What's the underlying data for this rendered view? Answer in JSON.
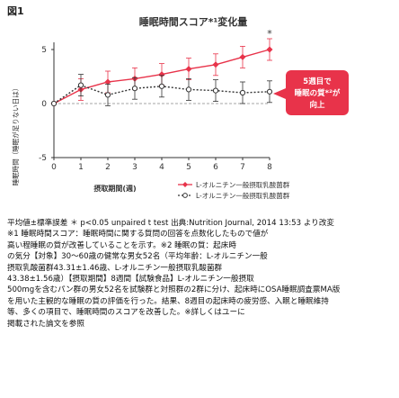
{
  "figure": {
    "label": "図1"
  },
  "chart_data": {
    "type": "line",
    "title": "睡眠時間スコア*¹変化量",
    "xlabel": "摂取期間(週)",
    "ylabel": "睡眠時間（睡眠が足りない日は）",
    "x": [
      0,
      1,
      2,
      3,
      4,
      5,
      6,
      7,
      8
    ],
    "xlim": [
      0,
      8
    ],
    "ylim": [
      -5,
      5
    ],
    "yticks": [
      -5,
      0,
      5
    ],
    "grid": false,
    "legend_position": "bottom-right",
    "series": [
      {
        "name": "L-オルニチン一般摂取乳酸菌群",
        "color": "#e8334a",
        "style": "solid",
        "marker": "diamond",
        "values": [
          0,
          1.3,
          2.0,
          2.3,
          2.7,
          3.2,
          3.6,
          4.3,
          5.0
        ]
      },
      {
        "name": "L-オルニチン一般摂取乳酸菌群",
        "color": "#333333",
        "style": "dotted",
        "marker": "circle",
        "values": [
          0,
          1.7,
          0.8,
          1.4,
          1.6,
          1.3,
          1.2,
          1.0,
          1.1
        ]
      }
    ],
    "significance": [
      {
        "x": 8,
        "label": "*"
      }
    ],
    "callout": {
      "text": [
        "5週目で",
        "睡眠の質*²が",
        "向上"
      ],
      "color": "#e8334a"
    }
  },
  "notes": {
    "stats": "平均値±標準誤差 ＊ p<0.05 unpaired t test 出典:Nutrition Journal, 2014 13:53 より改変",
    "lines": [
      "※1 睡眠時間スコア：睡眠時間に関する質問の回答を点数化したもので値が",
      "高い程睡眠の質が改善していることを示す。※2 睡眠の質：起床時",
      "の気分【対象】30～60歳の健常な男女52名（平均年齢：L-オルニチン一般",
      "摂取乳酸菌群43.31±1.46歳、L-オルニチン一般摂取乳酸菌群",
      "43.38±1.56歳）【摂取期間】8週間【試験食品】L-オルニチン一般摂取",
      "500mgを含むパン群の男女52名を試験群と対照群の2群に分け、起床時にOSA睡眠調査票MA版",
      "を用いた主観的な睡眠の質の評価を行った。結果、8週目の起床時の疲労感、入眠と睡眠維持",
      "等、多くの項目で、睡眠時間のスコアを改善した。※詳しくはユーに",
      "掲載された論文を参照"
    ]
  }
}
